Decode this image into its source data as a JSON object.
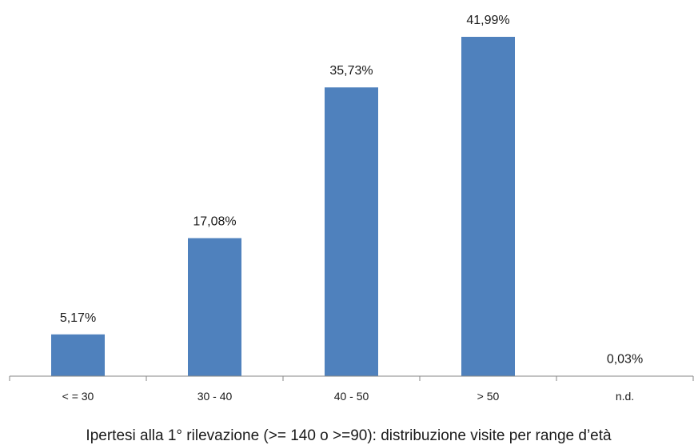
{
  "chart_data": {
    "type": "bar",
    "title": "Ipertesi alla 1° rilevazione (>= 140 o >=90): distribuzione visite per range d’età",
    "xlabel": "",
    "ylabel": "",
    "categories": [
      "< = 30",
      "30 - 40",
      "40 - 50",
      "> 50",
      "n.d."
    ],
    "values": [
      5.17,
      17.08,
      35.73,
      41.99,
      0.03
    ],
    "data_labels": [
      "5,17%",
      "17,08%",
      "35,73%",
      "41,99%",
      "0,03%"
    ],
    "unit": "%",
    "ylim": [
      0,
      45
    ],
    "grid": false,
    "legend": "none",
    "bar_color": "#4F81BD",
    "axis_color": "#868686"
  }
}
